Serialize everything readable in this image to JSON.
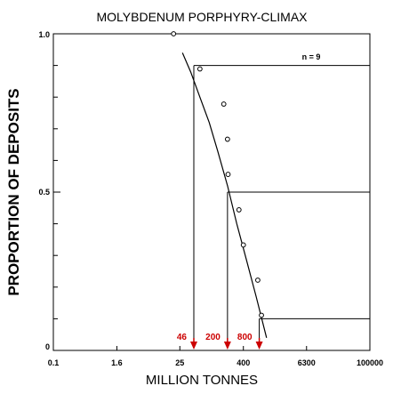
{
  "chart_data": {
    "type": "scatter",
    "title": "MOLYBDENUM PORPHYRY-CLIMAX",
    "xlabel": "MILLION TONNES",
    "ylabel": "PROPORTION OF DEPOSITS",
    "x_scale": "log",
    "x_ticks": [
      "0.1",
      "1.6",
      "25",
      "400",
      "6300",
      "100000"
    ],
    "x_tick_values": [
      0.1,
      1.6,
      25,
      400,
      6300,
      100000
    ],
    "xlim": [
      0.1,
      100000
    ],
    "y_ticks": [
      "1.0",
      "0.5",
      "0"
    ],
    "y_tick_values": [
      1.0,
      0.5,
      0
    ],
    "ylim": [
      0,
      1
    ],
    "annotation": "n = 9",
    "points": [
      {
        "x": 19,
        "y": 1.0
      },
      {
        "x": 60,
        "y": 0.889
      },
      {
        "x": 170,
        "y": 0.778
      },
      {
        "x": 200,
        "y": 0.667
      },
      {
        "x": 205,
        "y": 0.556
      },
      {
        "x": 330,
        "y": 0.444
      },
      {
        "x": 400,
        "y": 0.333
      },
      {
        "x": 750,
        "y": 0.222
      },
      {
        "x": 880,
        "y": 0.111
      }
    ],
    "fitted_curve": [
      {
        "x": 28,
        "y": 0.94
      },
      {
        "x": 40,
        "y": 0.88
      },
      {
        "x": 60,
        "y": 0.8
      },
      {
        "x": 90,
        "y": 0.72
      },
      {
        "x": 130,
        "y": 0.63
      },
      {
        "x": 200,
        "y": 0.52
      },
      {
        "x": 300,
        "y": 0.4
      },
      {
        "x": 450,
        "y": 0.29
      },
      {
        "x": 700,
        "y": 0.17
      },
      {
        "x": 1100,
        "y": 0.04
      }
    ],
    "percentiles": [
      {
        "label": "46",
        "proportion": 0.9,
        "tonnage": 46
      },
      {
        "label": "200",
        "proportion": 0.5,
        "tonnage": 200
      },
      {
        "label": "800",
        "proportion": 0.1,
        "tonnage": 800
      }
    ],
    "colors": {
      "axis": "#000000",
      "arrow": "#cc0000"
    }
  }
}
